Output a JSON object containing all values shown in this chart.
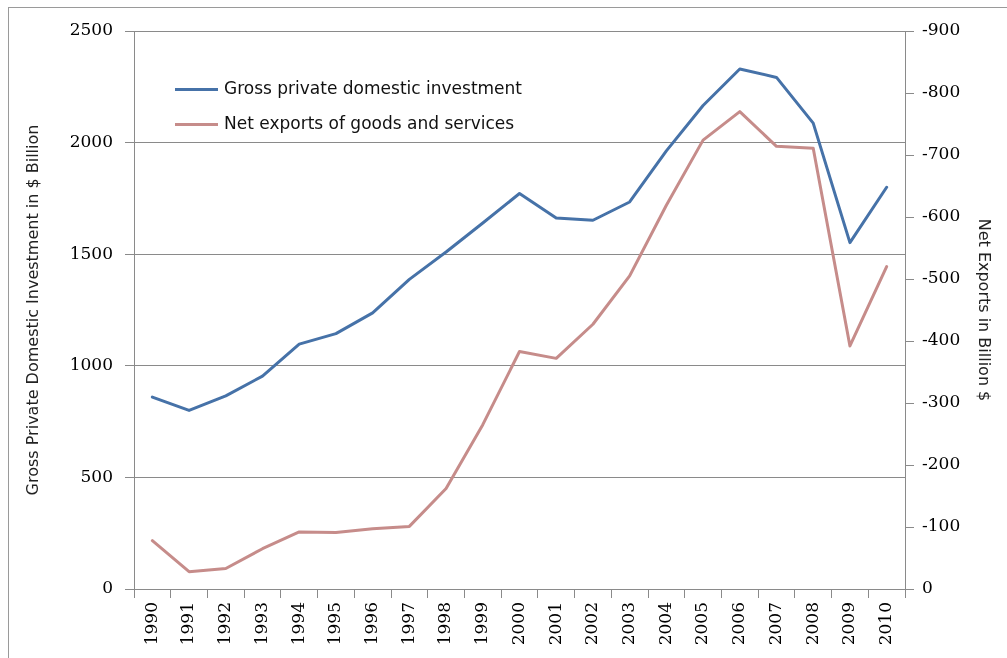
{
  "chart_data": {
    "type": "line",
    "ylabel": "Gross Private Domestic Investment in $ Billion",
    "y2label": "Net Exports in Billion $",
    "categories": [
      "1990",
      "1991",
      "1992",
      "1993",
      "1994",
      "1995",
      "1996",
      "1997",
      "1998",
      "1999",
      "2000",
      "2001",
      "2002",
      "2003",
      "2004",
      "2005",
      "2006",
      "2007",
      "2008",
      "2009",
      "2010"
    ],
    "series": [
      {
        "name": "Gross private domestic investment",
        "color": "#4672a8",
        "values": [
          860,
          800,
          865,
          954,
          1097,
          1144,
          1237,
          1387,
          1510,
          1640,
          1772,
          1662,
          1652,
          1734,
          1963,
          2166,
          2330,
          2292,
          2087,
          1552,
          1800
        ]
      },
      {
        "name": "Net exports of goods and services",
        "color": "#c68c8a",
        "axis": "y2",
        "values": [
          -78,
          -28,
          -33,
          -65,
          -92,
          -91,
          -97,
          -101,
          -162,
          -265,
          -383,
          -372,
          -427,
          -505,
          -619,
          -724,
          -770,
          -714,
          -711,
          -392,
          -520
        ]
      }
    ],
    "ylim": [
      0,
      2500
    ],
    "yticks": [
      0,
      500,
      1000,
      1500,
      2000,
      2500
    ],
    "y2lim": [
      0,
      -900
    ],
    "y2ticks": [
      0,
      -100,
      -200,
      -300,
      -400,
      -500,
      -600,
      -700,
      -800,
      -900
    ],
    "grid": "y",
    "legend": "top left",
    "marker": "none"
  }
}
